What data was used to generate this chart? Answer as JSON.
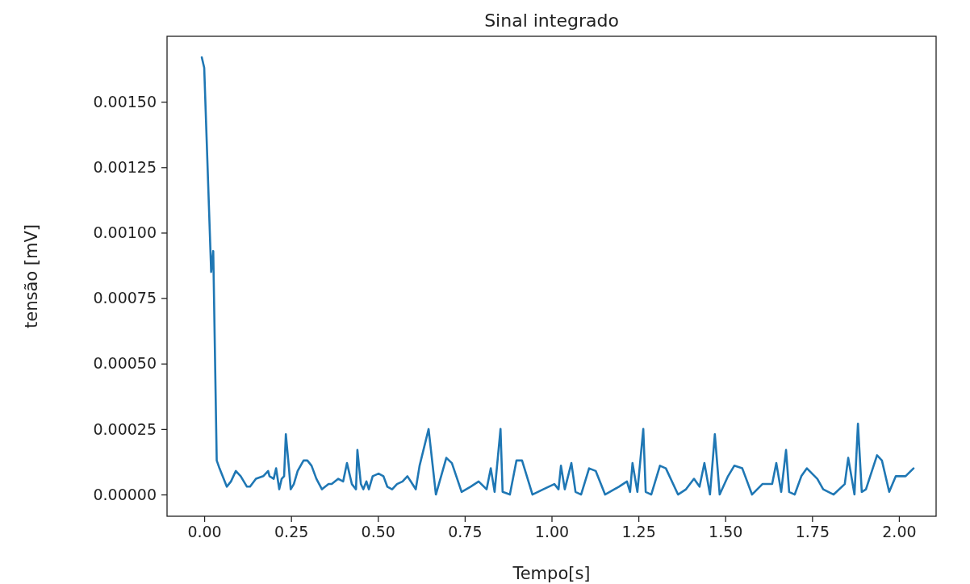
{
  "chart_data": {
    "type": "line",
    "title": "Sinal integrado",
    "xlabel": "Tempo[s]",
    "ylabel": "tensão [mV]",
    "xlim": [
      -0.107,
      2.107
    ],
    "ylim": [
      -8.3e-05,
      0.00175
    ],
    "xticks": [
      {
        "value": 0,
        "label": "0.00"
      },
      {
        "value": 0.25,
        "label": "0.25"
      },
      {
        "value": 0.5,
        "label": "0.50"
      },
      {
        "value": 0.75,
        "label": "0.75"
      },
      {
        "value": 1,
        "label": "1.00"
      },
      {
        "value": 1.25,
        "label": "1.25"
      },
      {
        "value": 1.5,
        "label": "1.50"
      },
      {
        "value": 1.75,
        "label": "1.75"
      },
      {
        "value": 2,
        "label": "2.00"
      }
    ],
    "yticks": [
      {
        "value": 0,
        "label": "0.00000"
      },
      {
        "value": 0.00025,
        "label": "0.00025"
      },
      {
        "value": 0.0005,
        "label": "0.00050"
      },
      {
        "value": 0.00075,
        "label": "0.00075"
      },
      {
        "value": 0.001,
        "label": "0.00100"
      },
      {
        "value": 0.00125,
        "label": "0.00125"
      },
      {
        "value": 0.0015,
        "label": "0.00150"
      }
    ],
    "grid": false,
    "series": [
      {
        "color": "#1f77b4",
        "x": [
          -0.007,
          0.0,
          0.02,
          0.026,
          0.036,
          0.044,
          0.065,
          0.077,
          0.091,
          0.105,
          0.123,
          0.132,
          0.149,
          0.17,
          0.184,
          0.188,
          0.2,
          0.207,
          0.216,
          0.223,
          0.23,
          0.235,
          0.244,
          0.249,
          0.258,
          0.269,
          0.286,
          0.297,
          0.309,
          0.323,
          0.339,
          0.358,
          0.367,
          0.386,
          0.4,
          0.411,
          0.425,
          0.437,
          0.441,
          0.451,
          0.458,
          0.467,
          0.474,
          0.485,
          0.502,
          0.516,
          0.527,
          0.541,
          0.555,
          0.571,
          0.585,
          0.609,
          0.62,
          0.646,
          0.667,
          0.697,
          0.713,
          0.741,
          0.767,
          0.79,
          0.813,
          0.825,
          0.836,
          0.853,
          0.859,
          0.88,
          0.899,
          0.915,
          0.945,
          0.976,
          1.008,
          1.02,
          1.027,
          1.038,
          1.057,
          1.069,
          1.085,
          1.108,
          1.127,
          1.154,
          1.194,
          1.217,
          1.226,
          1.233,
          1.247,
          1.264,
          1.271,
          1.287,
          1.312,
          1.329,
          1.364,
          1.387,
          1.41,
          1.426,
          1.44,
          1.456,
          1.47,
          1.484,
          1.508,
          1.526,
          1.549,
          1.577,
          1.607,
          1.635,
          1.647,
          1.661,
          1.675,
          1.684,
          1.7,
          1.719,
          1.735,
          1.765,
          1.782,
          1.812,
          1.844,
          1.854,
          1.872,
          1.882,
          1.893,
          1.905,
          1.937,
          1.951,
          1.972,
          1.991,
          2.019,
          2.042
        ],
        "values": [
          0.00167,
          0.00163,
          0.00085,
          0.00093,
          0.00013,
          0.0001,
          3e-05,
          5e-05,
          9e-05,
          7e-05,
          3e-05,
          3e-05,
          6e-05,
          7e-05,
          9e-05,
          7e-05,
          6e-05,
          0.0001,
          2e-05,
          6e-05,
          7e-05,
          0.00023,
          0.0001,
          2e-05,
          4e-05,
          9e-05,
          0.00013,
          0.00013,
          0.00011,
          6e-05,
          2e-05,
          4e-05,
          4e-05,
          6e-05,
          5e-05,
          0.00012,
          4e-05,
          2e-05,
          0.00017,
          4e-05,
          2e-05,
          5e-05,
          2e-05,
          7e-05,
          8e-05,
          7e-05,
          3e-05,
          2e-05,
          4e-05,
          5e-05,
          7e-05,
          2e-05,
          0.00011,
          0.00025,
          0.0,
          0.00014,
          0.00012,
          1e-05,
          3e-05,
          5e-05,
          2e-05,
          0.0001,
          1e-05,
          0.00025,
          1e-05,
          0.0,
          0.00013,
          0.00013,
          0.0,
          2e-05,
          4e-05,
          2e-05,
          0.00011,
          2e-05,
          0.00012,
          1e-05,
          0.0,
          0.0001,
          9e-05,
          0.0,
          3e-05,
          5e-05,
          1e-05,
          0.00012,
          1e-05,
          0.00025,
          1e-05,
          0.0,
          0.00011,
          0.0001,
          0.0,
          2e-05,
          6e-05,
          3e-05,
          0.00012,
          0.0,
          0.00023,
          0.0,
          7e-05,
          0.00011,
          0.0001,
          0.0,
          4e-05,
          4e-05,
          0.00012,
          1e-05,
          0.00017,
          1e-05,
          0.0,
          7e-05,
          0.0001,
          6e-05,
          2e-05,
          0.0,
          4e-05,
          0.00014,
          0.0,
          0.00027,
          1e-05,
          2e-05,
          0.00015,
          0.00013,
          1e-05,
          7e-05,
          7e-05,
          0.0001
        ]
      }
    ]
  }
}
